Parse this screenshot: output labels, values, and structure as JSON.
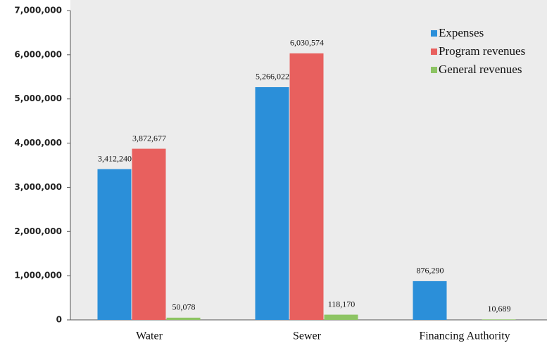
{
  "chart_data": {
    "type": "bar",
    "categories": [
      "Water",
      "Sewer",
      "Financing Authority"
    ],
    "series": [
      {
        "name": "Expenses",
        "color": "#2b8fd9",
        "values": [
          3412240,
          5266022,
          876290
        ],
        "value_labels": [
          "3,412,240",
          "5,266,022",
          "876,290"
        ]
      },
      {
        "name": "Program revenues",
        "color": "#e8605e",
        "values": [
          3872677,
          6030574,
          null
        ],
        "value_labels": [
          "3,872,677",
          "6,030,574",
          null
        ]
      },
      {
        "name": "General revenues",
        "color": "#8dc463",
        "values": [
          50078,
          118170,
          10689
        ],
        "value_labels": [
          "50,078",
          "118,170",
          "10,689"
        ]
      }
    ],
    "ylim": [
      0,
      7000000
    ],
    "yticks": [
      0,
      {
        "value": 1000000,
        "label": "1,000,000"
      },
      {
        "value": 2000000,
        "label": "2,000,000"
      },
      {
        "value": 3000000,
        "label": "3,000,000"
      },
      {
        "value": 4000000,
        "label": "4,000,000"
      },
      {
        "value": 5000000,
        "label": "5,000,000"
      },
      {
        "value": 6000000,
        "label": "6,000,000"
      },
      {
        "value": 7000000,
        "label": "7,000,000"
      }
    ],
    "legend": "upper right"
  }
}
